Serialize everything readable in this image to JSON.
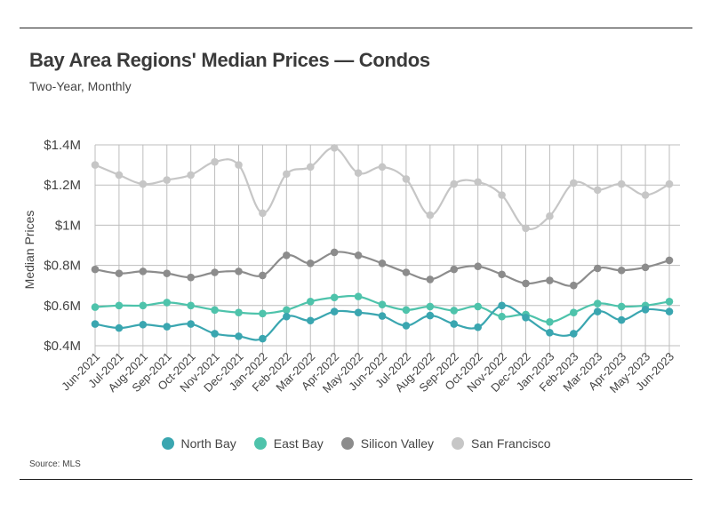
{
  "header": {
    "title": "Bay Area Regions' Median Prices — Condos",
    "subtitle": "Two-Year, Monthly"
  },
  "footer": {
    "source": "Source:  MLS"
  },
  "chart_data": {
    "type": "line",
    "title": "Bay Area Regions' Median Prices — Condos",
    "subtitle": "Two-Year, Monthly",
    "ylabel": "Median Prices",
    "xlabel": "",
    "ylim": [
      400000,
      1400000
    ],
    "yticks": [
      400000,
      600000,
      800000,
      1000000,
      1200000,
      1400000
    ],
    "ytick_labels": [
      "$0.4M",
      "$0.6M",
      "$0.8M",
      "$1M",
      "$1.2M",
      "$1.4M"
    ],
    "grid": true,
    "legend_position": "bottom",
    "categories": [
      "Jun-2021",
      "Jul-2021",
      "Aug-2021",
      "Sep-2021",
      "Oct-2021",
      "Nov-2021",
      "Dec-2021",
      "Jan-2022",
      "Feb-2022",
      "Mar-2022",
      "Apr-2022",
      "May-2022",
      "Jun-2022",
      "Jul-2022",
      "Aug-2022",
      "Sep-2022",
      "Oct-2022",
      "Nov-2022",
      "Dec-2022",
      "Jan-2023",
      "Feb-2023",
      "Mar-2023",
      "Apr-2023",
      "May-2023",
      "Jun-2023"
    ],
    "series": [
      {
        "name": "North Bay",
        "color": "#3aa6b0",
        "values": [
          508000,
          488000,
          505000,
          495000,
          508000,
          460000,
          447000,
          435000,
          545000,
          525000,
          570000,
          565000,
          548000,
          500000,
          550000,
          508000,
          492000,
          600000,
          540000,
          465000,
          460000,
          570000,
          528000,
          580000,
          570000
        ]
      },
      {
        "name": "East Bay",
        "color": "#4ec3ab",
        "values": [
          592000,
          600000,
          600000,
          615000,
          600000,
          578000,
          565000,
          560000,
          578000,
          620000,
          640000,
          645000,
          605000,
          578000,
          595000,
          575000,
          595000,
          545000,
          555000,
          518000,
          565000,
          610000,
          595000,
          600000,
          620000
        ]
      },
      {
        "name": "Silicon Valley",
        "color": "#8c8c8c",
        "values": [
          780000,
          760000,
          770000,
          760000,
          740000,
          765000,
          770000,
          750000,
          850000,
          810000,
          865000,
          850000,
          810000,
          765000,
          730000,
          780000,
          795000,
          755000,
          710000,
          725000,
          700000,
          785000,
          775000,
          790000,
          825000
        ]
      },
      {
        "name": "San Francisco",
        "color": "#c6c6c6",
        "values": [
          1300000,
          1250000,
          1205000,
          1225000,
          1250000,
          1315000,
          1300000,
          1060000,
          1255000,
          1290000,
          1385000,
          1260000,
          1290000,
          1230000,
          1050000,
          1205000,
          1215000,
          1150000,
          985000,
          1045000,
          1210000,
          1175000,
          1205000,
          1150000,
          1205000
        ]
      }
    ]
  }
}
